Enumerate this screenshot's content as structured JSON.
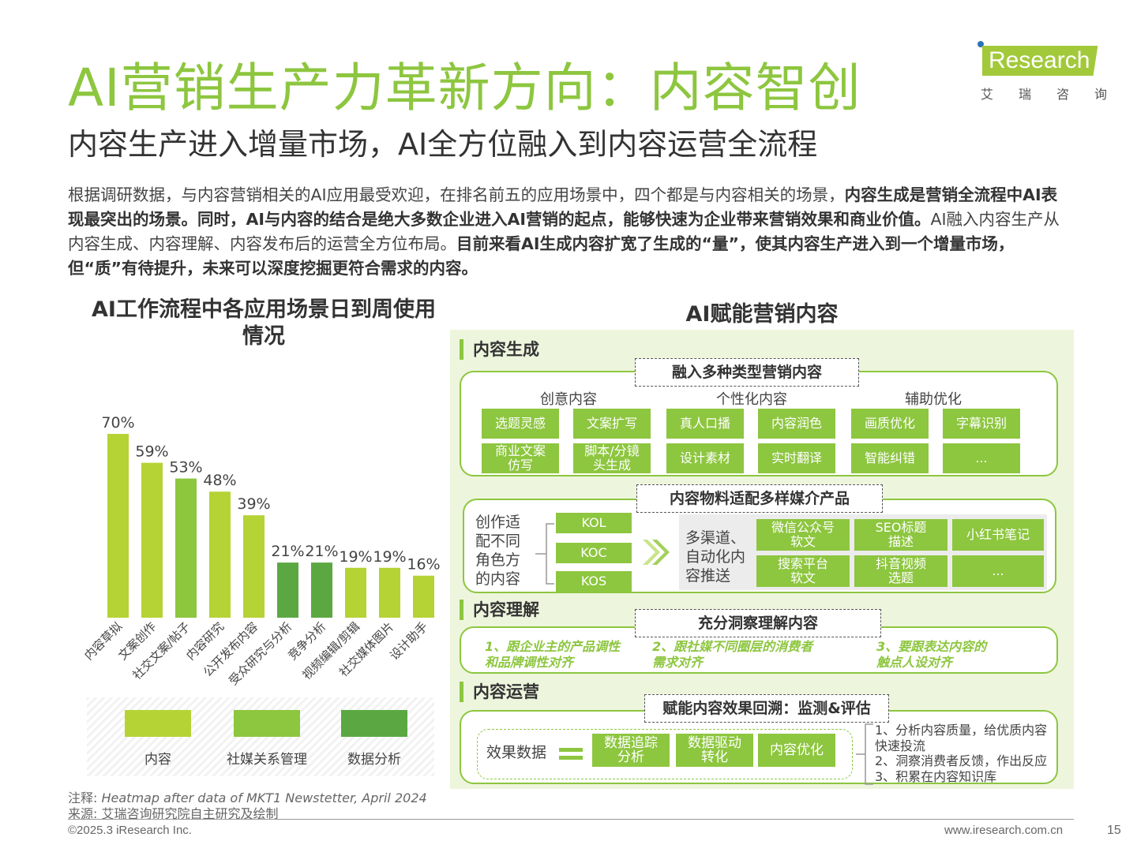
{
  "title": "AI营销生产力革新方向：内容智创",
  "subtitle": "内容生产进入增量市场，AI全方位融入到内容运营全流程",
  "logo": {
    "brand": "Research",
    "sub": [
      "艾",
      "瑞",
      "咨",
      "询"
    ]
  },
  "intro": {
    "p1": "根据调研数据，与内容营销相关的AI应用最受欢迎，在排名前五的应用场景中，四个都是与内容相关的场景，",
    "p2": "内容生成是营销全流程中AI表现最突出的场景。同时，AI与内容的结合是绝大多数企业进入AI营销的起点，能够快速为企业带来营销效果和商业价值。",
    "p3": "AI融入内容生产从内容生成、内容理解、内容发布后的运营全方位布局。",
    "p4": "目前来看AI生成内容扩宽了生成的“量”，使其内容生产进入到一个增量市场，但“质”有待提升，未来可以深度挖掘更符合需求的内容。"
  },
  "chart_data": {
    "type": "bar",
    "title": "AI工作流程中各应用场景日到周使用情况",
    "categories": [
      "内容草拟",
      "文案创作",
      "社交文案/帖子",
      "内容研究",
      "公开发布内容",
      "受众研究与分析",
      "竞争分析",
      "视频编辑/剪辑",
      "社交媒体图片",
      "设计助手"
    ],
    "values": [
      70,
      59,
      53,
      48,
      39,
      21,
      21,
      19,
      19,
      16
    ],
    "value_labels": [
      "70%",
      "59%",
      "53%",
      "48%",
      "39%",
      "21%",
      "21%",
      "19%",
      "19%",
      "16%"
    ],
    "groups": [
      "内容",
      "内容",
      "社媒关系管理",
      "内容",
      "内容",
      "数据分析",
      "数据分析",
      "内容",
      "内容",
      "内容"
    ],
    "legend": [
      {
        "name": "内容",
        "color": "#b5d334"
      },
      {
        "name": "社媒关系管理",
        "color": "#8dc63f"
      },
      {
        "name": "数据分析",
        "color": "#5ba843"
      }
    ],
    "ylim": [
      0,
      80
    ]
  },
  "panel": {
    "title": "AI赋能营销内容",
    "gen": {
      "label": "内容生成",
      "header": "融入多种类型营销内容",
      "cats": [
        "创意内容",
        "个性化内容",
        "辅助优化"
      ],
      "row1": [
        "选题灵感",
        "文案扩写",
        "真人口播",
        "内容润色",
        "画质优化",
        "字幕识别"
      ],
      "row2": [
        "商业文案仿写",
        "脚本/分镜头生成",
        "设计素材",
        "实时翻译",
        "智能纠错",
        "..."
      ],
      "header2": "内容物料适配多样媒介产品",
      "roles_text": "创作适配不同角色方的内容",
      "roles": [
        "KOL",
        "KOC",
        "KOS"
      ],
      "channel_text": "多渠道、自动化内容推送",
      "channels": [
        "微信公众号软文",
        "SEO标题描述",
        "小红书笔记",
        "搜索平台软文",
        "抖音视频选题",
        "..."
      ]
    },
    "und": {
      "label": "内容理解",
      "header": "充分洞察理解内容",
      "items": [
        "1、跟企业主的产品调性和品牌调性对齐",
        "2、跟社媒不同圈层的消费者需求对齐",
        "3、要跟表达内容的触点人设对齐"
      ]
    },
    "ops": {
      "label": "内容运营",
      "header": "赋能内容效果回溯：监测&评估",
      "left": "效果数据",
      "btns": [
        "数据追踪分析",
        "数据驱动转化",
        "内容优化"
      ],
      "notes": [
        "1、分析内容质量，给优质内容快速投流",
        "2、洞察消费者反馈，作出反应",
        "3、积累在内容知识库"
      ]
    }
  },
  "note": {
    "k1": "注释:",
    "v1": "Heatmap after data of MKT1 Newstetter, April 2024",
    "k2": "来源:",
    "v2": "艾瑞咨询研究院自主研究及绘制"
  },
  "footer": {
    "copyright": "©2025.3 iResearch Inc.",
    "website": "www.iresearch.com.cn",
    "page": "15"
  }
}
